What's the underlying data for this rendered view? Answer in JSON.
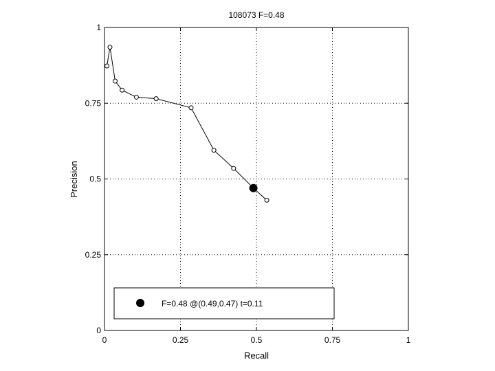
{
  "chart_data": {
    "type": "line",
    "title": "108073 F=0.48",
    "xlabel": "Recall",
    "ylabel": "Precision",
    "xlim": [
      0,
      1
    ],
    "ylim": [
      0,
      1
    ],
    "grid": true,
    "xticks": [
      0,
      0.25,
      0.5,
      0.75,
      1
    ],
    "yticks": [
      0,
      0.25,
      0.5,
      0.75,
      1
    ],
    "xtick_labels": [
      "0",
      "0.25",
      "0.5",
      "0.75",
      "1"
    ],
    "ytick_labels": [
      "0",
      "0.25",
      "0.5",
      "0.75",
      "1"
    ],
    "series": [
      {
        "x": [
          0.008,
          0.018,
          0.035,
          0.058,
          0.105,
          0.17,
          0.285,
          0.36,
          0.425,
          0.49,
          0.534
        ],
        "y": [
          0.873,
          0.935,
          0.823,
          0.793,
          0.77,
          0.765,
          0.735,
          0.595,
          0.535,
          0.47,
          0.43
        ],
        "color": "#000000",
        "marker": "open-circle"
      }
    ],
    "highlight_point": {
      "x": 0.49,
      "y": 0.47,
      "marker": "filled-circle"
    },
    "legend": {
      "placement": "bottom-left",
      "entries": [
        "F=0.48 @(0.49,0.47) t=0.11"
      ]
    }
  }
}
